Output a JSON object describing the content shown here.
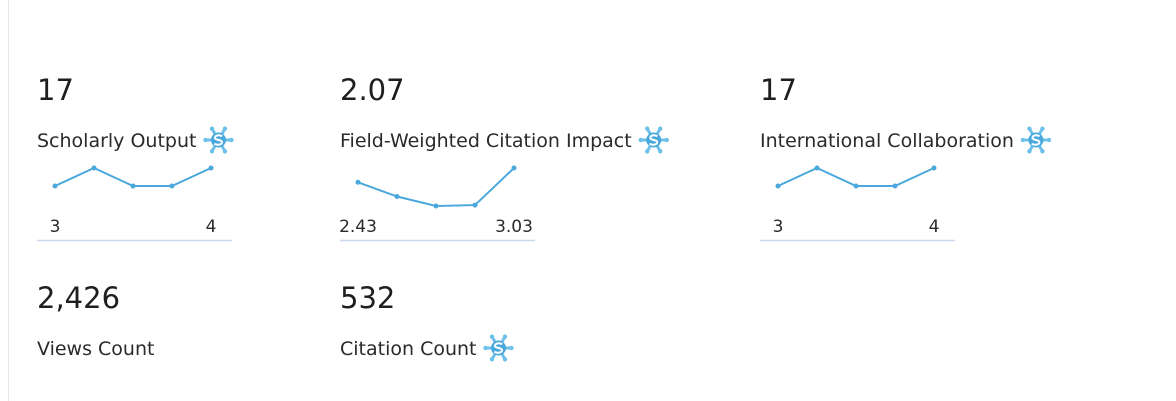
{
  "metrics": [
    {
      "value": "17",
      "label": "Scholarly Output",
      "snowball": true,
      "trend": [
        3,
        4,
        3,
        3,
        4
      ]
    },
    {
      "value": "2.07",
      "label": "Field-Weighted Citation Impact",
      "snowball": true,
      "trend": [
        2.43,
        1.83,
        1.43,
        1.47,
        3.03
      ]
    },
    {
      "value": "17",
      "label": "International Collaboration",
      "snowball": true,
      "trend": [
        3,
        4,
        3,
        3,
        4
      ]
    },
    {
      "value": "2,426",
      "label": "Views Count",
      "snowball": false
    },
    {
      "value": "532",
      "label": "Citation Count",
      "snowball": true
    }
  ]
}
